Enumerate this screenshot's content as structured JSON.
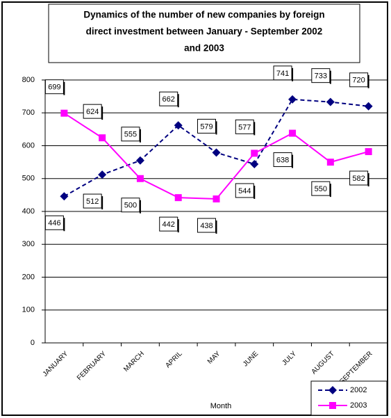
{
  "chart_data": {
    "type": "line",
    "title": [
      "Dynamics of the number of new companies by foreign",
      "direct investment between January - September 2002",
      "and  2003"
    ],
    "x_label": "Month",
    "categories": [
      "JANUARY",
      "FEBRUARY",
      "MARCH",
      "APRIL",
      "MAY",
      "JUNE",
      "JULY",
      "AUGUST",
      "SEPTEMBER"
    ],
    "series": [
      {
        "name": "2002",
        "color": "#000080",
        "values": [
          446,
          512,
          555,
          662,
          579,
          544,
          741,
          733,
          720
        ]
      },
      {
        "name": "2003",
        "color": "#ff00ff",
        "values": [
          699,
          624,
          500,
          442,
          438,
          577,
          638,
          550,
          582
        ]
      }
    ],
    "ylim": [
      0,
      800
    ],
    "yticks": [
      0,
      100,
      200,
      300,
      400,
      500,
      600,
      700,
      800
    ],
    "grid": true,
    "legend": "bottom-right"
  }
}
